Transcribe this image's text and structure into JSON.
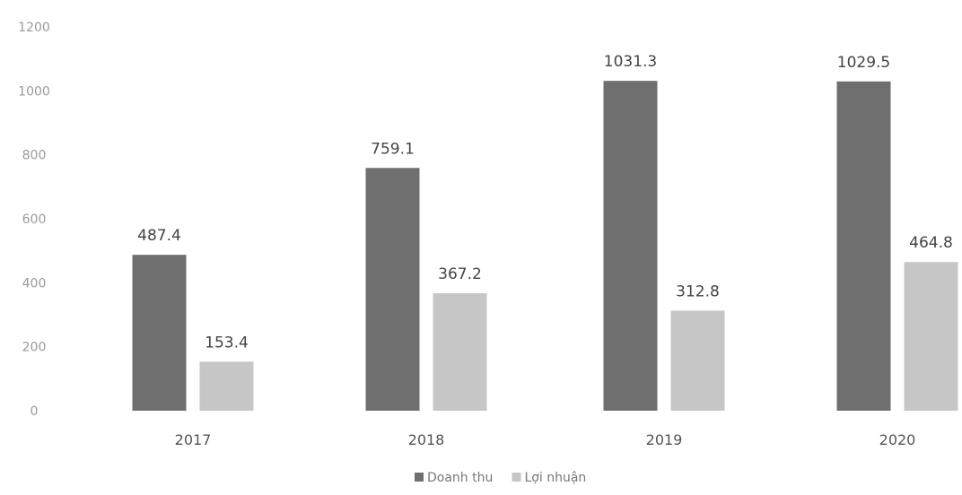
{
  "chart_data": {
    "type": "bar",
    "categories": [
      "2017",
      "2018",
      "2019",
      "2020"
    ],
    "series": [
      {
        "name": "Doanh thu",
        "values": [
          487.4,
          759.1,
          1031.3,
          1029.5
        ],
        "color": "#6f6f6f"
      },
      {
        "name": "Lợi nhuận",
        "values": [
          153.4,
          367.2,
          312.8,
          464.8
        ],
        "color": "#c6c6c6"
      }
    ],
    "title": "",
    "xlabel": "",
    "ylabel": "",
    "ylim": [
      0,
      1200
    ],
    "yticks": [
      0,
      200,
      400,
      600,
      800,
      1000,
      1200
    ],
    "data_labels": [
      [
        "487.4",
        "759.1",
        "1031.3",
        "1029.5"
      ],
      [
        "153.4",
        "367.2",
        "312.8",
        "464.8"
      ]
    ],
    "grid": false,
    "legend_position": "bottom-center"
  }
}
